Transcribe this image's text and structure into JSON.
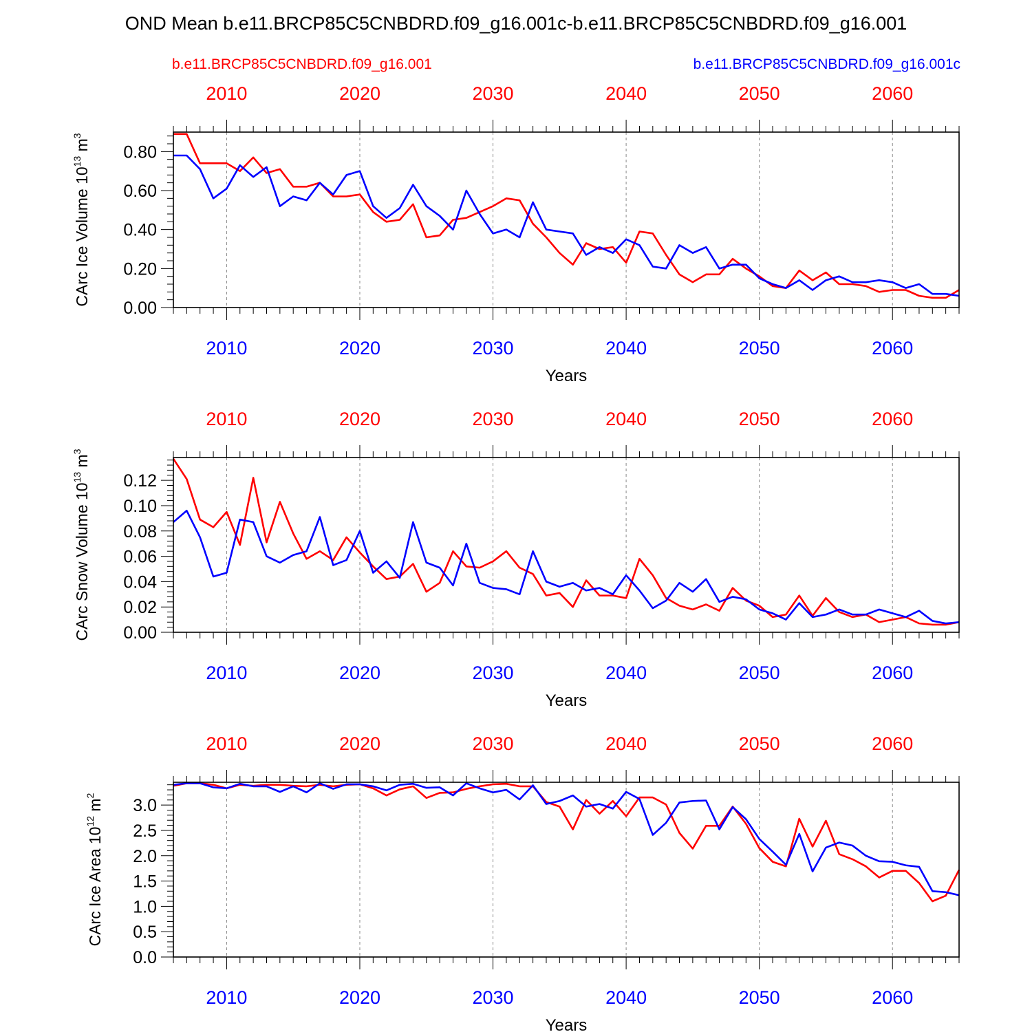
{
  "title": "OND Mean b.e11.BRCP85C5CNBDRD.f09_g16.001c-b.e11.BRCP85C5CNBDRD.f09_g16.001",
  "legend": {
    "left_label": "b.e11.BRCP85C5CNBDRD.f09_g16.001",
    "right_label": "b.e11.BRCP85C5CNBDRD.f09_g16.001c"
  },
  "colors": {
    "case1": "#ff0000",
    "case2": "#0000ff",
    "axis": "#000000",
    "grid": "#888888"
  },
  "chart_data": [
    {
      "type": "line",
      "title": "",
      "xlabel": "Years",
      "ylabel": "CArc Ice Volume",
      "yunits": "10^13 m^3",
      "xlim": [
        2006,
        2065
      ],
      "ylim": [
        0,
        0.9
      ],
      "xticks": [
        2010,
        2020,
        2030,
        2040,
        2050,
        2060
      ],
      "xtick_labels": [
        "2010",
        "2020",
        "2030",
        "2040",
        "2050",
        "2060"
      ],
      "yticks": [
        0,
        0.2,
        0.4,
        0.6,
        0.8
      ],
      "ytick_labels": [
        "0.00",
        "0.20",
        "0.40",
        "0.60",
        "0.80"
      ],
      "x_start": 2006,
      "series": [
        {
          "name": "b.e11.BRCP85C5CNBDRD.f09_g16.001",
          "color": "#ff0000",
          "values": [
            0.89,
            0.89,
            0.74,
            0.74,
            0.74,
            0.7,
            0.77,
            0.69,
            0.71,
            0.62,
            0.62,
            0.64,
            0.57,
            0.57,
            0.58,
            0.49,
            0.44,
            0.45,
            0.53,
            0.36,
            0.37,
            0.45,
            0.46,
            0.49,
            0.52,
            0.56,
            0.55,
            0.43,
            0.36,
            0.28,
            0.22,
            0.33,
            0.3,
            0.31,
            0.23,
            0.39,
            0.38,
            0.27,
            0.17,
            0.13,
            0.17,
            0.17,
            0.25,
            0.2,
            0.16,
            0.11,
            0.1,
            0.19,
            0.14,
            0.18,
            0.12,
            0.12,
            0.11,
            0.08,
            0.09,
            0.09,
            0.06,
            0.05,
            0.05,
            0.09
          ]
        },
        {
          "name": "b.e11.BRCP85C5CNBDRD.f09_g16.001c",
          "color": "#0000ff",
          "values": [
            0.78,
            0.78,
            0.71,
            0.56,
            0.61,
            0.73,
            0.67,
            0.72,
            0.52,
            0.57,
            0.55,
            0.64,
            0.58,
            0.68,
            0.7,
            0.52,
            0.46,
            0.51,
            0.63,
            0.52,
            0.47,
            0.4,
            0.6,
            0.48,
            0.38,
            0.4,
            0.36,
            0.54,
            0.4,
            0.39,
            0.38,
            0.27,
            0.31,
            0.28,
            0.35,
            0.32,
            0.21,
            0.2,
            0.32,
            0.28,
            0.31,
            0.2,
            0.22,
            0.22,
            0.15,
            0.12,
            0.1,
            0.14,
            0.09,
            0.14,
            0.16,
            0.13,
            0.13,
            0.14,
            0.13,
            0.1,
            0.12,
            0.07,
            0.07,
            0.06
          ]
        }
      ]
    },
    {
      "type": "line",
      "title": "",
      "xlabel": "Years",
      "ylabel": "CArc Snow Volume",
      "yunits": "10^13 m^3",
      "xlim": [
        2006,
        2065
      ],
      "ylim": [
        0,
        0.138
      ],
      "xticks": [
        2010,
        2020,
        2030,
        2040,
        2050,
        2060
      ],
      "xtick_labels": [
        "2010",
        "2020",
        "2030",
        "2040",
        "2050",
        "2060"
      ],
      "yticks": [
        0,
        0.02,
        0.04,
        0.06,
        0.08,
        0.1,
        0.12
      ],
      "ytick_labels": [
        "0.00",
        "0.02",
        "0.04",
        "0.06",
        "0.08",
        "0.10",
        "0.12"
      ],
      "x_start": 2006,
      "series": [
        {
          "name": "b.e11.BRCP85C5CNBDRD.f09_g16.001",
          "color": "#ff0000",
          "values": [
            0.137,
            0.121,
            0.089,
            0.083,
            0.095,
            0.069,
            0.122,
            0.071,
            0.103,
            0.078,
            0.058,
            0.064,
            0.057,
            0.075,
            0.063,
            0.052,
            0.042,
            0.044,
            0.054,
            0.032,
            0.039,
            0.064,
            0.052,
            0.051,
            0.056,
            0.064,
            0.051,
            0.046,
            0.029,
            0.031,
            0.02,
            0.041,
            0.029,
            0.029,
            0.027,
            0.058,
            0.045,
            0.027,
            0.021,
            0.018,
            0.022,
            0.017,
            0.035,
            0.025,
            0.021,
            0.012,
            0.014,
            0.029,
            0.013,
            0.027,
            0.016,
            0.012,
            0.014,
            0.008,
            0.01,
            0.012,
            0.007,
            0.006,
            0.006,
            0.008
          ]
        },
        {
          "name": "b.e11.BRCP85C5CNBDRD.f09_g16.001c",
          "color": "#0000ff",
          "values": [
            0.087,
            0.096,
            0.075,
            0.044,
            0.047,
            0.089,
            0.087,
            0.06,
            0.055,
            0.061,
            0.064,
            0.091,
            0.053,
            0.057,
            0.08,
            0.047,
            0.056,
            0.043,
            0.087,
            0.055,
            0.051,
            0.037,
            0.07,
            0.039,
            0.035,
            0.034,
            0.03,
            0.064,
            0.04,
            0.036,
            0.039,
            0.033,
            0.035,
            0.03,
            0.045,
            0.033,
            0.019,
            0.025,
            0.039,
            0.032,
            0.042,
            0.024,
            0.028,
            0.026,
            0.018,
            0.015,
            0.01,
            0.023,
            0.012,
            0.014,
            0.018,
            0.014,
            0.014,
            0.018,
            0.015,
            0.012,
            0.017,
            0.009,
            0.007,
            0.008
          ]
        }
      ]
    },
    {
      "type": "line",
      "title": "",
      "xlabel": "Years",
      "ylabel": "CArc Ice Area",
      "yunits": "10^12 m^2",
      "xlim": [
        2006,
        2065
      ],
      "ylim": [
        0,
        3.45
      ],
      "xticks": [
        2010,
        2020,
        2030,
        2040,
        2050,
        2060
      ],
      "xtick_labels": [
        "2010",
        "2020",
        "2030",
        "2040",
        "2050",
        "2060"
      ],
      "yticks": [
        0,
        0.5,
        1.0,
        1.5,
        2.0,
        2.5,
        3.0
      ],
      "ytick_labels": [
        "0.0",
        "0.5",
        "1.0",
        "1.5",
        "2.0",
        "2.5",
        "3.0"
      ],
      "x_start": 2006,
      "series": [
        {
          "name": "b.e11.BRCP85C5CNBDRD.f09_g16.001",
          "color": "#ff0000",
          "values": [
            3.38,
            3.43,
            3.43,
            3.4,
            3.33,
            3.4,
            3.38,
            3.4,
            3.4,
            3.38,
            3.37,
            3.4,
            3.37,
            3.4,
            3.41,
            3.33,
            3.19,
            3.31,
            3.37,
            3.14,
            3.24,
            3.25,
            3.32,
            3.37,
            3.41,
            3.42,
            3.37,
            3.37,
            3.06,
            2.97,
            2.52,
            3.1,
            2.83,
            3.08,
            2.78,
            3.15,
            3.15,
            3.01,
            2.45,
            2.14,
            2.59,
            2.59,
            2.97,
            2.63,
            2.15,
            1.88,
            1.79,
            2.73,
            2.18,
            2.69,
            2.03,
            1.93,
            1.79,
            1.57,
            1.7,
            1.7,
            1.46,
            1.1,
            1.21,
            1.72
          ]
        },
        {
          "name": "b.e11.BRCP85C5CNBDRD.f09_g16.001c",
          "color": "#0000ff",
          "values": [
            3.4,
            3.43,
            3.43,
            3.35,
            3.33,
            3.42,
            3.37,
            3.37,
            3.26,
            3.37,
            3.25,
            3.43,
            3.32,
            3.41,
            3.41,
            3.37,
            3.29,
            3.4,
            3.42,
            3.34,
            3.35,
            3.19,
            3.43,
            3.33,
            3.25,
            3.3,
            3.11,
            3.39,
            3.02,
            3.08,
            3.19,
            2.97,
            3.02,
            2.93,
            3.26,
            3.12,
            2.41,
            2.65,
            3.05,
            3.08,
            3.09,
            2.52,
            2.96,
            2.72,
            2.33,
            2.08,
            1.82,
            2.43,
            1.69,
            2.16,
            2.26,
            2.2,
            2.0,
            1.89,
            1.88,
            1.81,
            1.78,
            1.3,
            1.28,
            1.22
          ]
        }
      ]
    }
  ]
}
